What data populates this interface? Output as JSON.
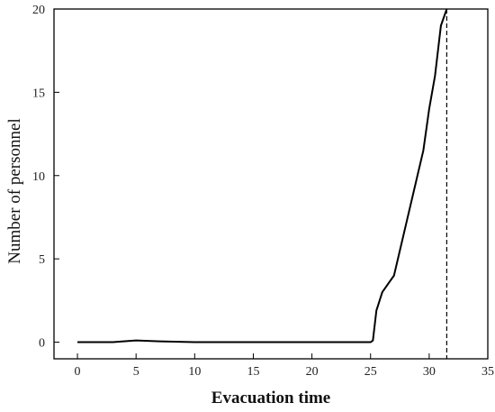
{
  "chart_data": {
    "type": "line",
    "title": "",
    "xlabel": "Evacuation time",
    "ylabel": "Number of personnel",
    "xlim": [
      -2,
      35
    ],
    "ylim": [
      -1,
      20
    ],
    "xticks": [
      0,
      5,
      10,
      15,
      20,
      25,
      30,
      35
    ],
    "yticks": [
      0,
      5,
      10,
      15,
      20
    ],
    "grid": false,
    "legend": "none",
    "series": [
      {
        "color": "#000000",
        "x": [
          0,
          3,
          5,
          7,
          10,
          15,
          20,
          25,
          25.2,
          25.5,
          26,
          26.5,
          27,
          27.5,
          28,
          28.5,
          29,
          29.5,
          30,
          30.5,
          31,
          31.3,
          31.5
        ],
        "y": [
          0,
          0,
          0.1,
          0.05,
          0,
          0,
          0,
          0,
          0.1,
          1.9,
          3,
          3.5,
          4,
          5.5,
          7,
          8.5,
          10,
          11.5,
          14,
          16,
          19,
          19.6,
          20
        ]
      }
    ],
    "annotations": [
      {
        "type": "vertical-dashed-line",
        "x": 31.5,
        "color": "#000000"
      }
    ]
  }
}
